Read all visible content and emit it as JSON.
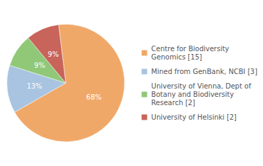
{
  "chart_data": {
    "type": "pie",
    "categories": [
      "Centre for Biodiversity\nGenomics [15]",
      "Mined from GenBank, NCBI [3]",
      "University of Vienna, Dept of\nBotany and Biodiversity\nResearch [2]",
      "University of Helsinki [2]"
    ],
    "values": [
      68,
      13,
      9,
      9
    ],
    "value_labels": [
      "68%",
      "13%",
      "9%",
      "9%"
    ],
    "colors": [
      "#f0a868",
      "#a8c4e0",
      "#90c878",
      "#c8645a"
    ],
    "data_labels": true,
    "legend": "right"
  }
}
